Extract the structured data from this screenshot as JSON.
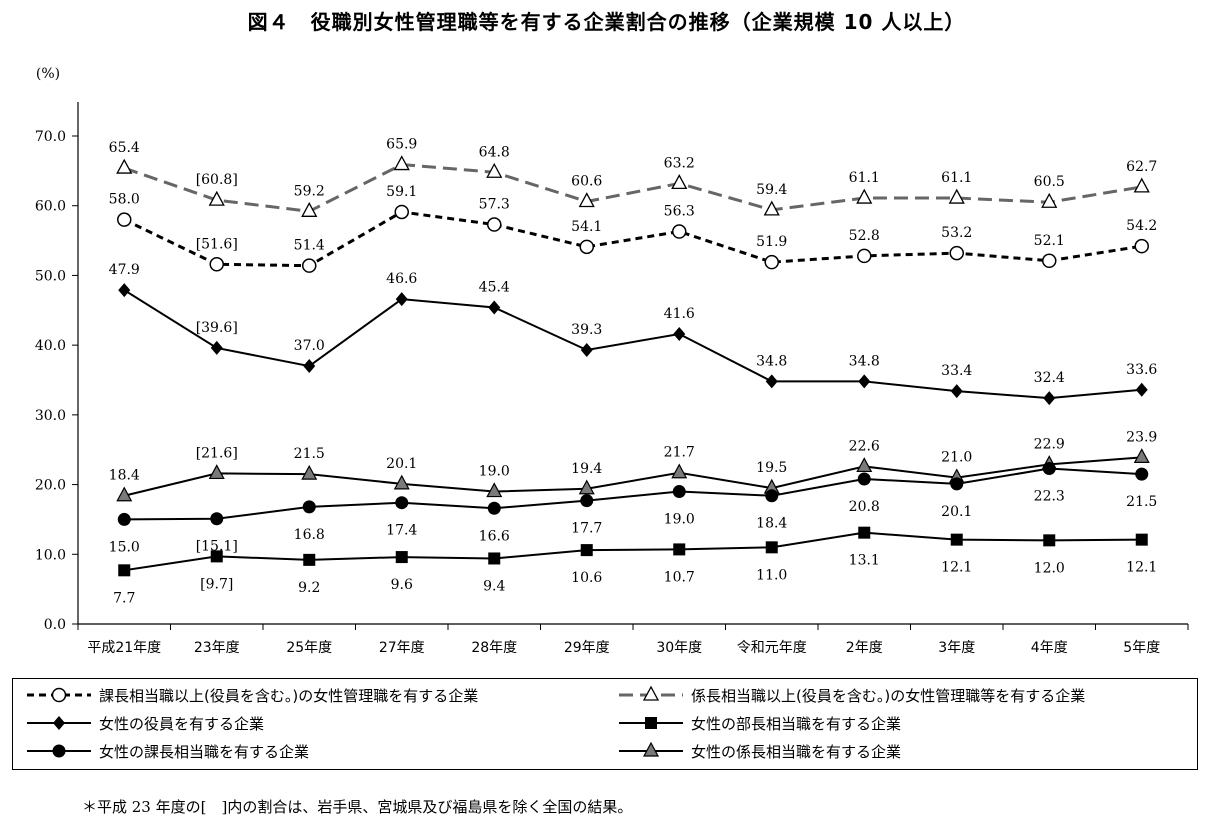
{
  "title": "図４　役職別女性管理職等を有する企業割合の推移（企業規模 10 人以上）",
  "unit_label": "(%)",
  "footnote": "＊平成 23 年度の[　]内の割合は、岩手県、宮城県及び福島県を除く全国の結果。",
  "chart_data": {
    "type": "line",
    "ylim": [
      0,
      70
    ],
    "y_ticks": [
      "0.0",
      "10.0",
      "20.0",
      "30.0",
      "40.0",
      "50.0",
      "60.0",
      "70.0"
    ],
    "categories": [
      "平成21年度",
      "23年度",
      "25年度",
      "27年度",
      "28年度",
      "29年度",
      "30年度",
      "令和元年度",
      "2年度",
      "3年度",
      "4年度",
      "5年度"
    ],
    "series": [
      {
        "name": "係長相当職以上(役員を含む。)の女性管理職等を有する企業",
        "style": "dash-gray",
        "marker": "open-triangle",
        "values": [
          65.4,
          60.8,
          59.2,
          65.9,
          64.8,
          60.6,
          63.2,
          59.4,
          61.1,
          61.1,
          60.5,
          62.7
        ],
        "labels": [
          "65.4",
          "[60.8]",
          "59.2",
          "65.9",
          "64.8",
          "60.6",
          "63.2",
          "59.4",
          "61.1",
          "61.1",
          "60.5",
          "62.7"
        ],
        "label_pos": "above"
      },
      {
        "name": "課長相当職以上(役員を含む。)の女性管理職を有する企業",
        "style": "dash-black",
        "marker": "open-circle",
        "values": [
          58.0,
          51.6,
          51.4,
          59.1,
          57.3,
          54.1,
          56.3,
          51.9,
          52.8,
          53.2,
          52.1,
          54.2
        ],
        "labels": [
          "58.0",
          "[51.6]",
          "51.4",
          "59.1",
          "57.3",
          "54.1",
          "56.3",
          "51.9",
          "52.8",
          "53.2",
          "52.1",
          "54.2"
        ],
        "label_pos": "above"
      },
      {
        "name": "女性の役員を有する企業",
        "style": "solid",
        "marker": "diamond",
        "values": [
          47.9,
          39.6,
          37.0,
          46.6,
          45.4,
          39.3,
          41.6,
          34.8,
          34.8,
          33.4,
          32.4,
          33.6
        ],
        "labels": [
          "47.9",
          "[39.6]",
          "37.0",
          "46.6",
          "45.4",
          "39.3",
          "41.6",
          "34.8",
          "34.8",
          "33.4",
          "32.4",
          "33.6"
        ],
        "label_pos": "above"
      },
      {
        "name": "女性の係長相当職を有する企業",
        "style": "solid",
        "marker": "gray-triangle",
        "values": [
          18.4,
          21.6,
          21.5,
          20.1,
          19.0,
          19.4,
          21.7,
          19.5,
          22.6,
          21.0,
          22.9,
          23.9
        ],
        "labels": [
          "18.4",
          "[21.6]",
          "21.5",
          "20.1",
          "19.0",
          "19.4",
          "21.7",
          "19.5",
          "22.6",
          "21.0",
          "22.9",
          "23.9"
        ],
        "label_pos": "above"
      },
      {
        "name": "女性の課長相当職を有する企業",
        "style": "solid",
        "marker": "filled-circle",
        "values": [
          15.0,
          15.1,
          16.8,
          17.4,
          16.6,
          17.7,
          19.0,
          18.4,
          20.8,
          20.1,
          22.3,
          21.5
        ],
        "labels": [
          "15.0",
          "[15.1]",
          "16.8",
          "17.4",
          "16.6",
          "17.7",
          "19.0",
          "18.4",
          "20.8",
          "20.1",
          "22.3",
          "21.5"
        ],
        "label_pos": "below"
      },
      {
        "name": "女性の部長相当職を有する企業",
        "style": "solid",
        "marker": "filled-square",
        "values": [
          7.7,
          9.7,
          9.2,
          9.6,
          9.4,
          10.6,
          10.7,
          11.0,
          13.1,
          12.1,
          12.0,
          12.1
        ],
        "labels": [
          "7.7",
          "[9.7]",
          "9.2",
          "9.6",
          "9.4",
          "10.6",
          "10.7",
          "11.0",
          "13.1",
          "12.1",
          "12.0",
          "12.1"
        ],
        "label_pos": "below"
      }
    ],
    "legend_order": [
      1,
      0,
      2,
      5,
      4,
      3
    ]
  }
}
